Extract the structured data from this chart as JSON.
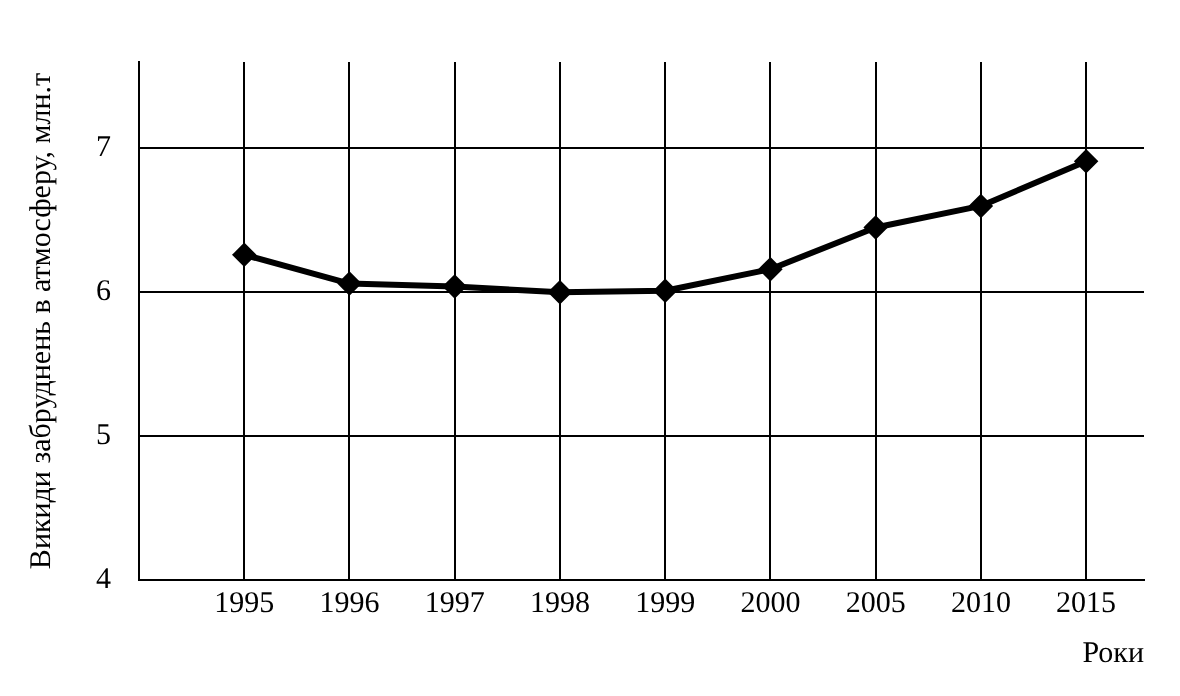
{
  "chart_data": {
    "type": "line",
    "xlabel": "Роки",
    "ylabel": "Викиди забруднень в атмосферу, млн.т",
    "categories": [
      "1995",
      "1996",
      "1997",
      "1998",
      "1999",
      "2000",
      "2005",
      "2010",
      "2015"
    ],
    "series": [
      {
        "color": "#000000",
        "values": [
          6.26,
          6.06,
          6.04,
          6.0,
          6.01,
          6.16,
          6.45,
          6.6,
          6.91
        ]
      }
    ],
    "ylim": [
      4,
      7.6
    ],
    "yticks": [
      4,
      5,
      6,
      7
    ],
    "grid": true,
    "marker": "diamond",
    "line_style": "solid",
    "legend": false
  }
}
